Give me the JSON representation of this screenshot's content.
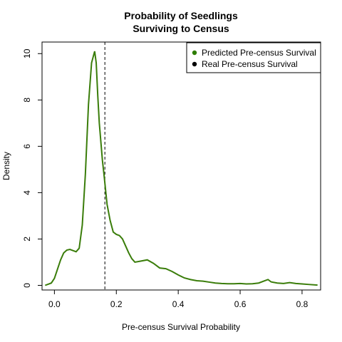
{
  "chart_data": {
    "type": "line",
    "title": [
      "Probability of Seedlings",
      "Surviving to Census"
    ],
    "xlabel": "Pre-census Survival Probability",
    "ylabel": "Density",
    "xlim": [
      -0.04,
      0.86
    ],
    "ylim": [
      -0.2,
      10.5
    ],
    "xticks": [
      "0.0",
      "0.2",
      "0.4",
      "0.6",
      "0.8"
    ],
    "yticks": [
      "0",
      "2",
      "4",
      "6",
      "8",
      "10"
    ],
    "grid": false,
    "legend_position": "top-right",
    "legend": [
      {
        "label": "Predicted Pre-census Survival",
        "color": "#2e7d00"
      },
      {
        "label": "Real Pre-census Survival",
        "color": "#000000"
      }
    ],
    "reference_line": {
      "x": 0.163,
      "style": "dashed",
      "color": "#000000"
    },
    "series": [
      {
        "color": "#3a7d0a",
        "x": [
          -0.03,
          -0.01,
          0.0,
          0.01,
          0.02,
          0.03,
          0.04,
          0.05,
          0.06,
          0.07,
          0.08,
          0.09,
          0.1,
          0.11,
          0.12,
          0.13,
          0.135,
          0.14,
          0.145,
          0.15,
          0.155,
          0.16,
          0.17,
          0.18,
          0.19,
          0.2,
          0.21,
          0.22,
          0.23,
          0.24,
          0.25,
          0.26,
          0.28,
          0.3,
          0.32,
          0.34,
          0.36,
          0.38,
          0.4,
          0.42,
          0.44,
          0.46,
          0.48,
          0.5,
          0.52,
          0.54,
          0.56,
          0.58,
          0.6,
          0.62,
          0.64,
          0.66,
          0.68,
          0.69,
          0.7,
          0.72,
          0.74,
          0.76,
          0.78,
          0.8,
          0.82,
          0.85
        ],
        "y": [
          0.0,
          0.1,
          0.3,
          0.7,
          1.1,
          1.4,
          1.52,
          1.55,
          1.5,
          1.45,
          1.6,
          2.6,
          4.8,
          7.8,
          9.6,
          10.1,
          9.6,
          8.2,
          7.0,
          6.2,
          5.4,
          4.8,
          3.5,
          2.8,
          2.3,
          2.2,
          2.15,
          2.0,
          1.7,
          1.4,
          1.15,
          1.0,
          1.05,
          1.1,
          0.95,
          0.75,
          0.72,
          0.6,
          0.45,
          0.32,
          0.25,
          0.2,
          0.18,
          0.14,
          0.1,
          0.08,
          0.07,
          0.07,
          0.08,
          0.06,
          0.07,
          0.1,
          0.2,
          0.25,
          0.15,
          0.1,
          0.08,
          0.12,
          0.08,
          0.06,
          0.04,
          0.01
        ]
      }
    ]
  }
}
